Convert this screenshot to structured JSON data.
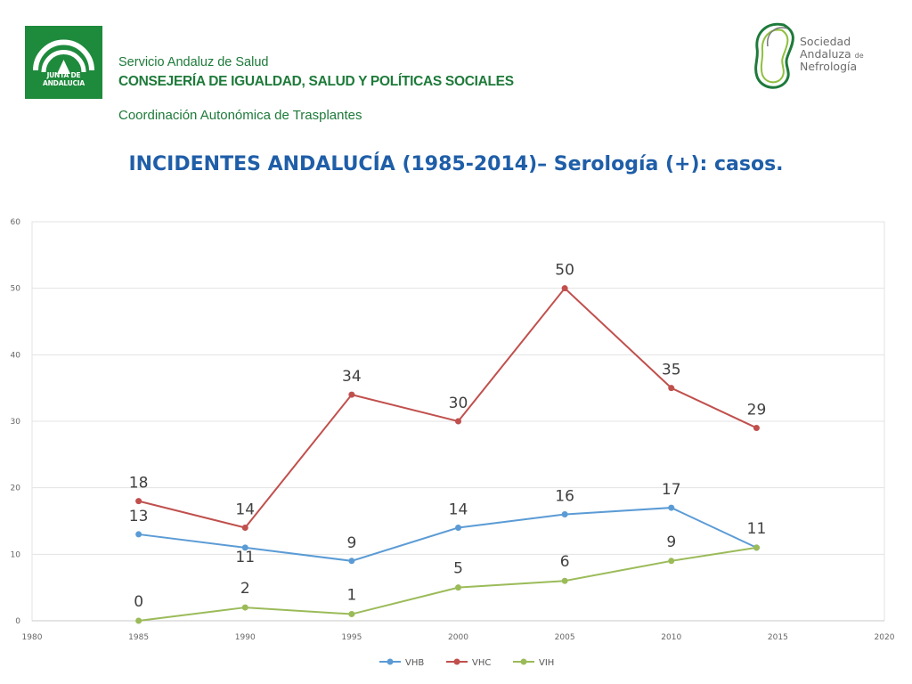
{
  "header": {
    "junta_logo_text": "JUNTA DE ANDALUCIA",
    "service": "Servicio Andaluz de Salud",
    "consejeria": "CONSEJERÍA DE IGUALDAD, SALUD Y POLÍTICAS SOCIALES",
    "coordinacion": "Coordinación Autonómica de Trasplantes",
    "society_logo": {
      "line1": "Sociedad",
      "line2": "Andaluza",
      "line2_small": "de",
      "line3": "Nefrología"
    }
  },
  "title": "INCIDENTES ANDALUCÍA (1985-2014)– Serología (+): casos.",
  "colors": {
    "green_brand": "#1e8a3c",
    "title_blue": "#1f5ea8",
    "vhb": "#5b9bd5",
    "vhc": "#c0504d",
    "vih": "#9bbb59"
  },
  "chart_data": {
    "type": "line",
    "title": "",
    "xlabel": "",
    "ylabel": "",
    "x": [
      1985,
      1990,
      1995,
      2000,
      2005,
      2010,
      2014
    ],
    "xlim": [
      1980,
      2020
    ],
    "ylim": [
      0,
      60
    ],
    "x_ticks": [
      1980,
      1985,
      1990,
      1995,
      2000,
      2005,
      2010,
      2015,
      2020
    ],
    "y_ticks": [
      0,
      10,
      20,
      30,
      40,
      50,
      60
    ],
    "grid": "horizontal",
    "legend_position": "bottom",
    "series": [
      {
        "name": "VHB",
        "color": "#5b9bd5",
        "values": [
          13,
          11,
          9,
          14,
          16,
          17,
          11
        ]
      },
      {
        "name": "VHC",
        "color": "#c0504d",
        "values": [
          18,
          14,
          34,
          30,
          50,
          35,
          29
        ]
      },
      {
        "name": "VIH",
        "color": "#9bbb59",
        "values": [
          0,
          2,
          1,
          5,
          6,
          9,
          11
        ]
      }
    ]
  }
}
